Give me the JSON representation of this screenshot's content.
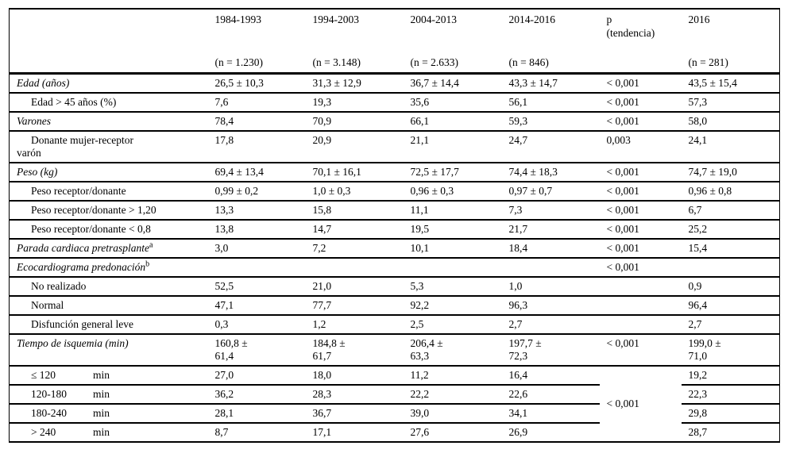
{
  "colors": {
    "text": "#000000",
    "lines": "#000000",
    "background": "#ffffff"
  },
  "table": {
    "columns": [
      {
        "label": "",
        "n": ""
      },
      {
        "label": "1984-1993",
        "n": "(n = 1.230)"
      },
      {
        "label": "1994-2003",
        "n": "(n = 3.148)"
      },
      {
        "label": "2004-2013",
        "n": "(n = 2.633)"
      },
      {
        "label": "2014-2016",
        "n": "(n = 846)"
      },
      {
        "label": "p\n(tendencia)",
        "n": ""
      },
      {
        "label": "2016",
        "n": "(n = 281)"
      }
    ],
    "rows": [
      {
        "label": "Edad (años)",
        "sup": "",
        "unit": "",
        "italic": true,
        "indent": false,
        "values": [
          "26,5 ± 10,3",
          "31,3 ± 12,9",
          "36,7 ± 14,4",
          "43,3 ± 14,7"
        ],
        "p": "< 0,001",
        "v2016": "43,5 ± 15,4"
      },
      {
        "label": "Edad > 45 años (%)",
        "sup": "",
        "unit": "",
        "italic": false,
        "indent": true,
        "values": [
          "7,6",
          "19,3",
          "35,6",
          "56,1"
        ],
        "p": "< 0,001",
        "v2016": "57,3"
      },
      {
        "label": "Varones",
        "sup": "",
        "unit": "",
        "italic": true,
        "indent": false,
        "values": [
          "78,4",
          "70,9",
          "66,1",
          "59,3"
        ],
        "p": "< 0,001",
        "v2016": "58,0"
      },
      {
        "label": "Donante mujer-receptor\nvarón",
        "sup": "",
        "unit": "",
        "italic": false,
        "indent": true,
        "values": [
          "17,8",
          "20,9",
          "21,1",
          "24,7"
        ],
        "p": "0,003",
        "v2016": "24,1"
      },
      {
        "label": "Peso (kg)",
        "sup": "",
        "unit": "",
        "italic": true,
        "indent": false,
        "values": [
          "69,4 ± 13,4",
          "70,1 ± 16,1",
          "72,5 ± 17,7",
          "74,4 ± 18,3"
        ],
        "p": "< 0,001",
        "v2016": "74,7 ± 19,0"
      },
      {
        "label": "Peso receptor/donante",
        "sup": "",
        "unit": "",
        "italic": false,
        "indent": true,
        "values": [
          "0,99 ± 0,2",
          "1,0 ± 0,3",
          "0,96 ± 0,3",
          "0,97 ± 0,7"
        ],
        "p": "< 0,001",
        "v2016": "0,96 ± 0,8"
      },
      {
        "label": "Peso receptor/donante > 1,20",
        "sup": "",
        "unit": "",
        "italic": false,
        "indent": true,
        "values": [
          "13,3",
          "15,8",
          "11,1",
          "7,3"
        ],
        "p": "< 0,001",
        "v2016": "6,7"
      },
      {
        "label": "Peso receptor/donante < 0,8",
        "sup": "",
        "unit": "",
        "italic": false,
        "indent": true,
        "values": [
          "13,8",
          "14,7",
          "19,5",
          "21,7"
        ],
        "p": "< 0,001",
        "v2016": "25,2"
      },
      {
        "label": "Parada cardiaca pretrasplante",
        "sup": "a",
        "unit": "",
        "italic": true,
        "indent": false,
        "values": [
          "3,0",
          "7,2",
          "10,1",
          "18,4"
        ],
        "p": "< 0,001",
        "v2016": "15,4"
      },
      {
        "label": "Ecocardiograma predonación",
        "sup": "b",
        "unit": "",
        "italic": true,
        "indent": false,
        "values": [
          "",
          "",
          "",
          ""
        ],
        "p": "< 0,001",
        "v2016": ""
      },
      {
        "label": "No realizado",
        "sup": "",
        "unit": "",
        "italic": false,
        "indent": true,
        "values": [
          "52,5",
          "21,0",
          "5,3",
          "1,0"
        ],
        "p": "",
        "v2016": "0,9"
      },
      {
        "label": "Normal",
        "sup": "",
        "unit": "",
        "italic": false,
        "indent": true,
        "values": [
          "47,1",
          "77,7",
          "92,2",
          "96,3"
        ],
        "p": "",
        "v2016": "96,4"
      },
      {
        "label": "Disfunción general leve",
        "sup": "",
        "unit": "",
        "italic": false,
        "indent": true,
        "values": [
          "0,3",
          "1,2",
          "2,5",
          "2,7"
        ],
        "p": "",
        "v2016": "2,7"
      },
      {
        "label": "Tiempo de isquemia (min)",
        "sup": "",
        "unit": "",
        "italic": true,
        "indent": false,
        "values": [
          "160,8 ±\n61,4",
          "184,8 ±\n61,7",
          "206,4 ±\n63,3",
          "197,7 ±\n72,3"
        ],
        "p": "< 0,001",
        "v2016": "199,0 ±\n71,0"
      },
      {
        "label": "≤ 120",
        "sup": "",
        "unit": "min",
        "italic": false,
        "indent": true,
        "values": [
          "27,0",
          "18,0",
          "11,2",
          "16,4"
        ],
        "p": "< 0,001",
        "p_rowspan": 4,
        "v2016": "19,2"
      },
      {
        "label": "120-180",
        "sup": "",
        "unit": "min",
        "italic": false,
        "indent": true,
        "values": [
          "36,2",
          "28,3",
          "22,2",
          "22,6"
        ],
        "p": null,
        "v2016": "22,3"
      },
      {
        "label": "180-240",
        "sup": "",
        "unit": "min",
        "italic": false,
        "indent": true,
        "values": [
          "28,1",
          "36,7",
          "39,0",
          "34,1"
        ],
        "p": null,
        "v2016": "29,8"
      },
      {
        "label": "> 240",
        "sup": "",
        "unit": "min",
        "italic": false,
        "indent": true,
        "values": [
          "8,7",
          "17,1",
          "27,6",
          "26,9"
        ],
        "p": null,
        "v2016": "28,7"
      }
    ]
  }
}
